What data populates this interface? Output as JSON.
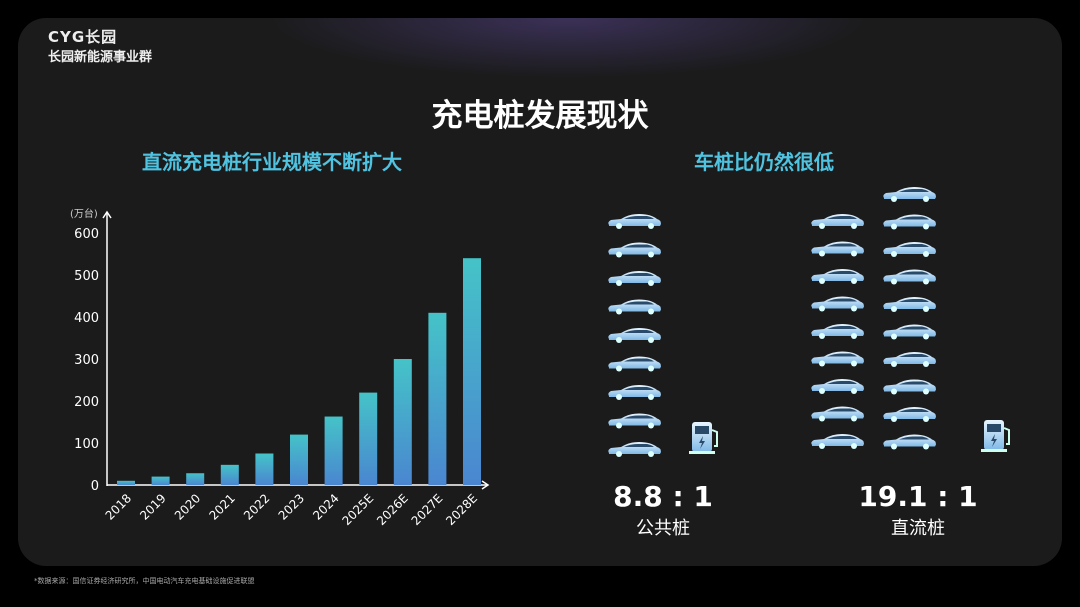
{
  "logo": {
    "brand": "CYG长园",
    "division": "长园新能源事业群"
  },
  "title": "充电桩发展现状",
  "left_subtitle": "直流充电桩行业规模不断扩大",
  "right_subtitle": "车桩比仍然很低",
  "chart_data": {
    "type": "bar",
    "ylabel": "(万台)",
    "categories": [
      "2018",
      "2019",
      "2020",
      "2021",
      "2022",
      "2023",
      "2024",
      "2025E",
      "2026E",
      "2027E",
      "2028E"
    ],
    "values": [
      10,
      20,
      28,
      48,
      75,
      120,
      163,
      220,
      300,
      410,
      540
    ],
    "yticks": [
      0,
      100,
      200,
      300,
      400,
      500,
      600
    ],
    "ylim": [
      0,
      600
    ],
    "grid": false,
    "colors": {
      "top": "#45c3c8",
      "bottom": "#4a86d0"
    }
  },
  "ratios": [
    {
      "value": "8.8 : 1",
      "label": "公共桩",
      "cars": 9
    },
    {
      "value": "19.1 : 1",
      "label": "直流桩",
      "cars": 19
    }
  ],
  "icons": {
    "car": "car-icon",
    "charger": "ev-charger-icon"
  },
  "footnote": "*数据来源：国信证券经济研究所，中国电动汽车充电基础设施促进联盟"
}
